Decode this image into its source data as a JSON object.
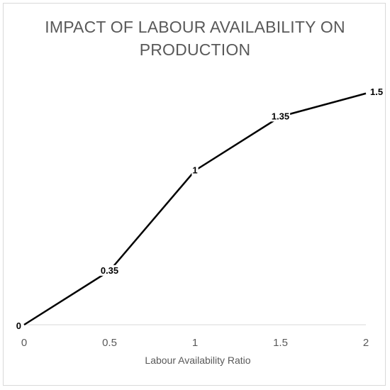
{
  "chart_data": {
    "type": "line",
    "title_lines": [
      "IMPACT OF LABOUR AVAILABILITY ON",
      "PRODUCTION"
    ],
    "xlabel": "Labour Availability Ratio",
    "ylabel": "",
    "x": [
      0,
      0.5,
      1,
      1.5,
      2
    ],
    "x_tick_labels": [
      "0",
      "0.5",
      "1",
      "1.5",
      "2"
    ],
    "series": [
      {
        "values": [
          0,
          0.35,
          1,
          1.35,
          1.5
        ],
        "data_labels": [
          "0",
          "0.35",
          "1",
          "1.35",
          "1.5"
        ]
      }
    ],
    "xlim": [
      0,
      2
    ],
    "ylim": [
      0,
      1.6
    ],
    "grid": false,
    "legend": "none",
    "line_color": "#000000",
    "axis_color": "#d9d9d9",
    "text_color": "#595959"
  }
}
